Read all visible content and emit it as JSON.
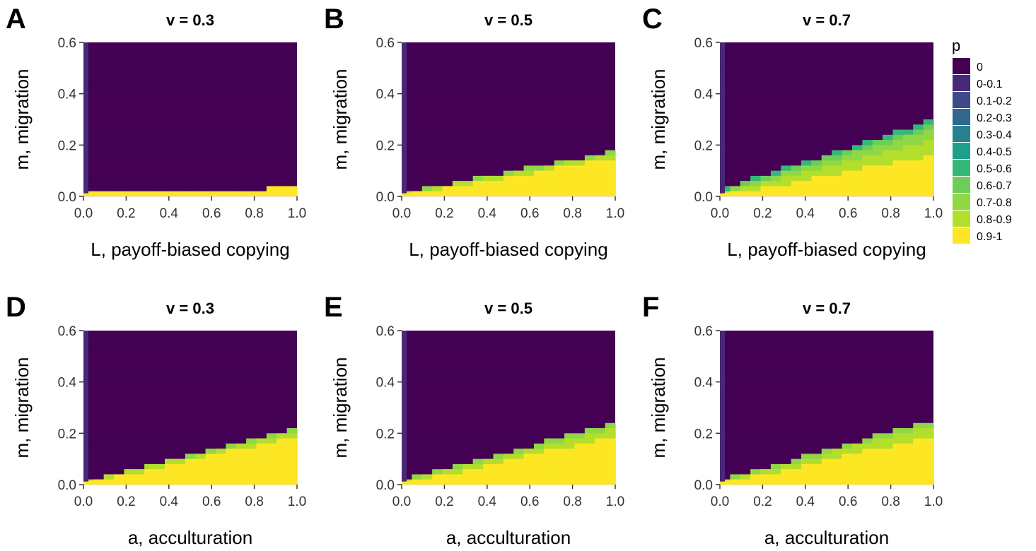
{
  "chart_data": {
    "type": "heatmap",
    "x_ticks": [
      "0.0",
      "0.2",
      "0.4",
      "0.6",
      "0.8",
      "1.0"
    ],
    "y_ticks": [
      "0.0",
      "0.2",
      "0.4",
      "0.6"
    ],
    "xlim": [
      0,
      1
    ],
    "ylim": [
      0,
      0.6
    ],
    "grid": false,
    "legend": {
      "title": "p",
      "placement": "right",
      "categories": [
        "0",
        "0-0.1",
        "0.1-0.2",
        "0.2-0.3",
        "0.3-0.4",
        "0.4-0.5",
        "0.5-0.6",
        "0.6-0.7",
        "0.7-0.8",
        "0.8-0.9",
        "0.9-1"
      ],
      "colors": [
        "#440154",
        "#482878",
        "#3E4A89",
        "#31688E",
        "#26828E",
        "#1F9E89",
        "#35B779",
        "#6DCD59",
        "#8FD744",
        "#B4DE2C",
        "#FDE725"
      ]
    },
    "panels": [
      {
        "letter": "A",
        "title": "v = 0.3",
        "xlabel": "L, payoff-biased copying",
        "ylabel": "m, migration",
        "left_column_category": 1,
        "boundaries": [
          {
            "x": [
              0.0,
              0.85,
              0.88,
              1.0
            ],
            "y": [
              0.015,
              0.015,
              0.03,
              0.03
            ],
            "category": 10
          }
        ]
      },
      {
        "letter": "B",
        "title": "v = 0.5",
        "xlabel": "L, payoff-biased copying",
        "ylabel": "m, migration",
        "left_column_category": 1,
        "boundaries": [
          {
            "x": [
              0.0,
              1.0
            ],
            "y": [
              0.0,
              0.15
            ],
            "category": 10
          },
          {
            "x": [
              0.0,
              1.0
            ],
            "y": [
              0.01,
              0.165
            ],
            "category": 9
          },
          {
            "x": [
              0.0,
              1.0
            ],
            "y": [
              0.015,
              0.175
            ],
            "category": 8
          }
        ]
      },
      {
        "letter": "C",
        "title": "v = 0.7",
        "xlabel": "L, payoff-biased copying",
        "ylabel": "m, migration",
        "left_column_category": 1,
        "boundaries": [
          {
            "x": [
              0.0,
              1.0
            ],
            "y": [
              0.0,
              0.16
            ],
            "category": 10
          },
          {
            "x": [
              0.0,
              1.0
            ],
            "y": [
              0.01,
              0.22
            ],
            "category": 9
          },
          {
            "x": [
              0.0,
              1.0
            ],
            "y": [
              0.015,
              0.26
            ],
            "category": 8
          },
          {
            "x": [
              0.0,
              1.0
            ],
            "y": [
              0.02,
              0.28
            ],
            "category": 7
          },
          {
            "x": [
              0.0,
              1.0
            ],
            "y": [
              0.025,
              0.3
            ],
            "category": 6
          }
        ]
      },
      {
        "letter": "D",
        "title": "v = 0.3",
        "xlabel": "a, acculturation",
        "ylabel": "m, migration",
        "left_column_category": 1,
        "boundaries": [
          {
            "x": [
              0.0,
              1.0
            ],
            "y": [
              0.0,
              0.19
            ],
            "category": 10
          },
          {
            "x": [
              0.0,
              1.0
            ],
            "y": [
              0.01,
              0.21
            ],
            "category": 9
          },
          {
            "x": [
              0.0,
              1.0
            ],
            "y": [
              0.015,
              0.22
            ],
            "category": 8
          }
        ]
      },
      {
        "letter": "E",
        "title": "v = 0.5",
        "xlabel": "a, acculturation",
        "ylabel": "m, migration",
        "left_column_category": 1,
        "boundaries": [
          {
            "x": [
              0.0,
              1.0
            ],
            "y": [
              0.0,
              0.19
            ],
            "category": 10
          },
          {
            "x": [
              0.0,
              1.0
            ],
            "y": [
              0.01,
              0.22
            ],
            "category": 9
          },
          {
            "x": [
              0.0,
              1.0
            ],
            "y": [
              0.015,
              0.24
            ],
            "category": 8
          }
        ]
      },
      {
        "letter": "F",
        "title": "v = 0.7",
        "xlabel": "a, acculturation",
        "ylabel": "m, migration",
        "left_column_category": 1,
        "boundaries": [
          {
            "x": [
              0.0,
              1.0
            ],
            "y": [
              0.0,
              0.19
            ],
            "category": 10
          },
          {
            "x": [
              0.0,
              1.0
            ],
            "y": [
              0.01,
              0.23
            ],
            "category": 9
          },
          {
            "x": [
              0.0,
              1.0
            ],
            "y": [
              0.015,
              0.255
            ],
            "category": 8
          }
        ]
      }
    ]
  }
}
